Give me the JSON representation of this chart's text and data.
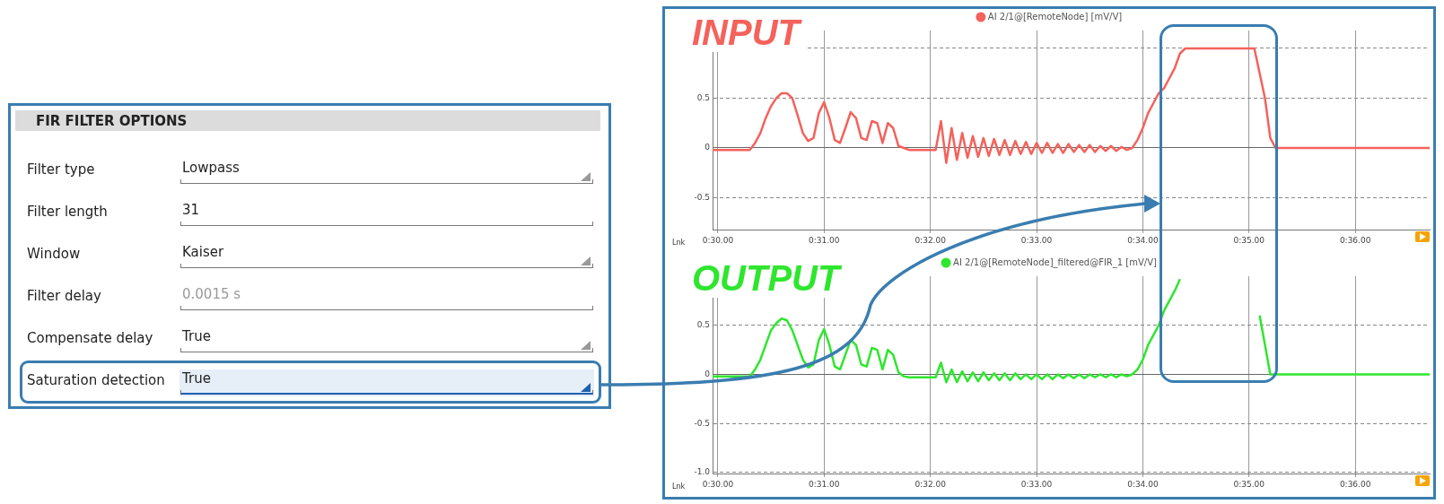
{
  "chart_data": [
    {
      "type": "other",
      "title": "FIR FILTER OPTIONS",
      "annotations": [
        "Filter type",
        "Lowpass",
        "Filter length",
        "31",
        "Window",
        "Kaiser",
        "Filter delay",
        "0.0015 s",
        "Compensate delay",
        "True",
        "Saturation detection",
        "True"
      ]
    },
    {
      "type": "line",
      "title": "INPUT",
      "legend": "top",
      "grid": true,
      "marker": "none",
      "annotations": [
        "Lnk"
      ],
      "categories": [
        null,
        "0:30.00",
        null,
        null,
        null,
        null,
        null,
        null,
        null,
        null,
        null,
        null,
        null,
        null,
        null,
        null,
        null,
        null,
        null,
        null,
        null,
        "0:31.00",
        null,
        null,
        null,
        null,
        null,
        null,
        null,
        null,
        null,
        null,
        null,
        null,
        null,
        null,
        null,
        null,
        null,
        null,
        null,
        "0:32.00",
        null,
        null,
        null,
        null,
        null,
        null,
        null,
        null,
        null,
        null,
        null,
        null,
        null,
        null,
        null,
        null,
        null,
        null,
        null,
        "0:33.00",
        null,
        null,
        null,
        null,
        null,
        null,
        null,
        null,
        null,
        null,
        null,
        null,
        null,
        null,
        null,
        null,
        null,
        null,
        null,
        "0:34.00",
        null,
        null,
        null,
        null,
        null,
        null,
        null,
        null,
        null,
        null,
        null,
        null,
        null,
        null,
        null,
        null,
        null,
        null,
        null,
        "0:35.00",
        null,
        null,
        null,
        null,
        null,
        null,
        null,
        null,
        null,
        null,
        null,
        null,
        null,
        null,
        null,
        null,
        null,
        null,
        null,
        "0:36.00",
        null,
        null,
        null,
        null,
        null,
        null,
        null,
        null,
        null,
        null,
        null,
        null,
        null,
        null
      ],
      "ylim": [
        -0.82,
        1.18
      ],
      "yticks": [
        -0.5,
        0,
        0.5,
        {
          "value": 1,
          "label": null
        }
      ],
      "series": [
        {
          "name": "AI 2/1@[RemoteNode] [mV/V]",
          "color": "#f4625c",
          "values": [
            -0.02,
            -0.02,
            -0.02,
            -0.02,
            -0.02,
            -0.02,
            -0.02,
            -0.02,
            0.05,
            0.15,
            0.3,
            0.42,
            0.5,
            0.55,
            0.55,
            0.5,
            0.33,
            0.15,
            0.07,
            0.1,
            0.35,
            0.46,
            0.3,
            0.08,
            0.05,
            0.2,
            0.36,
            0.3,
            0.1,
            0.08,
            0.27,
            0.25,
            0.05,
            0.25,
            0.2,
            0.02,
            0.0,
            -0.02,
            -0.02,
            -0.02,
            -0.02,
            -0.02,
            -0.02,
            0.27,
            -0.15,
            0.2,
            -0.12,
            0.15,
            -0.1,
            0.12,
            -0.09,
            0.1,
            -0.08,
            0.09,
            -0.07,
            0.08,
            -0.07,
            0.07,
            -0.06,
            0.06,
            -0.06,
            0.05,
            -0.05,
            0.05,
            -0.05,
            0.04,
            -0.05,
            0.04,
            -0.04,
            0.03,
            -0.04,
            0.03,
            -0.04,
            0.02,
            -0.03,
            0.02,
            -0.03,
            0.01,
            -0.02,
            0.0,
            0.08,
            0.2,
            0.35,
            0.45,
            0.55,
            0.6,
            0.7,
            0.8,
            0.95,
            1.0,
            1.0,
            1.0,
            1.0,
            1.0,
            1.0,
            1.0,
            1.0,
            1.0,
            1.0,
            1.0,
            1.0,
            1.0,
            1.0,
            0.75,
            0.5,
            0.1,
            0.0,
            0.0,
            0.0,
            0.0,
            0.0,
            0.0,
            0.0,
            0.0,
            0.0,
            0.0,
            0.0,
            0.0,
            0.0,
            0.0,
            0.0,
            0.0,
            0.0,
            0.0,
            0.0,
            0.0,
            0.0,
            0.0,
            0.0,
            0.0,
            0.0,
            0.0,
            0.0,
            0.0,
            0.0,
            0.0
          ]
        }
      ]
    },
    {
      "type": "line",
      "title": "OUTPUT",
      "legend": "top",
      "grid": true,
      "marker": "none",
      "annotations": [
        "Lnk"
      ],
      "categories": [
        null,
        "0:30.00",
        null,
        null,
        null,
        null,
        null,
        null,
        null,
        null,
        null,
        null,
        null,
        null,
        null,
        null,
        null,
        null,
        null,
        null,
        null,
        "0:31.00",
        null,
        null,
        null,
        null,
        null,
        null,
        null,
        null,
        null,
        null,
        null,
        null,
        null,
        null,
        null,
        null,
        null,
        null,
        null,
        "0:32.00",
        null,
        null,
        null,
        null,
        null,
        null,
        null,
        null,
        null,
        null,
        null,
        null,
        null,
        null,
        null,
        null,
        null,
        null,
        null,
        "0:33.00",
        null,
        null,
        null,
        null,
        null,
        null,
        null,
        null,
        null,
        null,
        null,
        null,
        null,
        null,
        null,
        null,
        null,
        null,
        null,
        "0:34.00",
        null,
        null,
        null,
        null,
        null,
        null,
        null,
        null,
        null,
        null,
        null,
        null,
        null,
        null,
        null,
        null,
        null,
        null,
        null,
        "0:35.00",
        null,
        null,
        null,
        null,
        null,
        null,
        null,
        null,
        null,
        null,
        null,
        null,
        null,
        null,
        null,
        null,
        null,
        null,
        null,
        "0:36.00",
        null,
        null,
        null,
        null,
        null,
        null,
        null,
        null,
        null,
        null,
        null,
        null,
        null,
        null
      ],
      "ylim": [
        -1.01,
        1.0
      ],
      "yticks": [
        {
          "value": -1,
          "label": "-1.0"
        },
        -0.5,
        0,
        0.5
      ],
      "series": [
        {
          "name": "AI 2/1@[RemoteNode]_filtered@FIR_1 [mV/V]",
          "color": "#2ee62e",
          "values": [
            -0.02,
            -0.02,
            -0.02,
            -0.02,
            -0.02,
            -0.02,
            -0.02,
            -0.02,
            0.05,
            0.15,
            0.3,
            0.45,
            0.52,
            0.57,
            0.55,
            0.45,
            0.3,
            0.15,
            0.07,
            0.1,
            0.35,
            0.46,
            0.3,
            0.08,
            0.05,
            0.2,
            0.35,
            0.3,
            0.1,
            0.08,
            0.27,
            0.25,
            0.05,
            0.25,
            0.2,
            0.02,
            -0.02,
            -0.03,
            -0.03,
            -0.03,
            -0.03,
            -0.03,
            -0.03,
            0.12,
            -0.08,
            0.05,
            -0.08,
            0.03,
            -0.07,
            0.02,
            -0.07,
            0.02,
            -0.06,
            0.01,
            -0.06,
            0.01,
            -0.06,
            0.01,
            -0.05,
            0.0,
            -0.05,
            0.0,
            -0.05,
            0.0,
            -0.05,
            0.0,
            -0.04,
            0.0,
            -0.04,
            0.0,
            -0.04,
            0.0,
            -0.03,
            0.0,
            -0.03,
            0.0,
            -0.03,
            0.0,
            -0.02,
            0.0,
            0.05,
            0.15,
            0.3,
            0.4,
            0.5,
            0.65,
            0.75,
            0.85,
            0.97,
            null,
            null,
            null,
            null,
            null,
            null,
            null,
            null,
            null,
            null,
            null,
            null,
            null,
            null,
            0.6,
            0.3,
            0.0,
            0.0,
            0.0,
            0.0,
            0.0,
            0.0,
            0.0,
            0.0,
            0.0,
            0.0,
            0.0,
            0.0,
            0.0,
            0.0,
            0.0,
            0.0,
            0.0,
            0.0,
            0.0,
            0.0,
            0.0,
            0.0,
            0.0,
            0.0,
            0.0,
            0.0,
            0.0,
            0.0,
            0.0,
            0.0,
            0.0
          ]
        }
      ]
    }
  ]
}
